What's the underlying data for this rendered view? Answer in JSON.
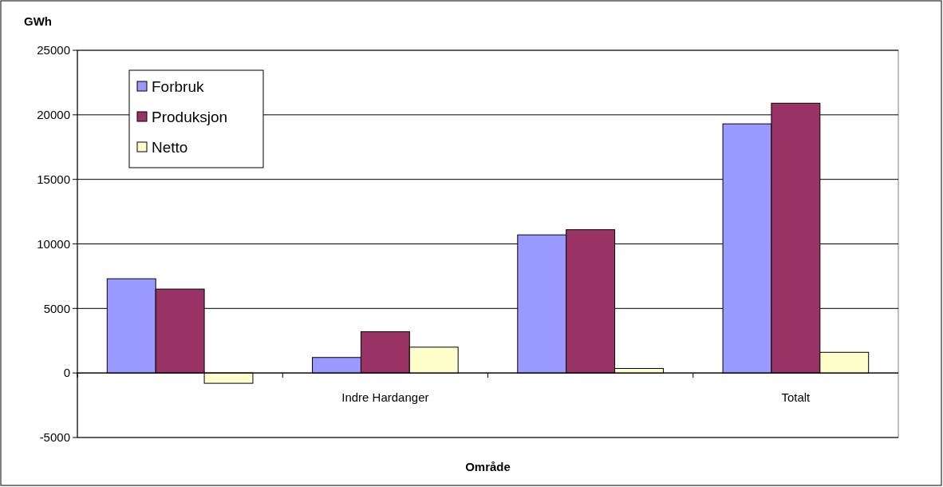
{
  "chart_data": {
    "type": "bar",
    "ylabel": "GWh",
    "xlabel": "Område",
    "categories": [
      null,
      "Indre Hardanger",
      null,
      "Totalt"
    ],
    "series": [
      {
        "name": "Forbruk",
        "color": "#9999ff",
        "values": [
          7300,
          1200,
          10700,
          19300
        ]
      },
      {
        "name": "Produksjon",
        "color": "#993366",
        "values": [
          6500,
          3200,
          11100,
          20900
        ]
      },
      {
        "name": "Netto",
        "color": "#ffffcc",
        "values": [
          -800,
          2000,
          350,
          1600
        ]
      }
    ],
    "ylim": [
      -5000,
      25000
    ],
    "yticks": [
      -5000,
      0,
      5000,
      10000,
      15000,
      20000,
      25000
    ],
    "grid": "y",
    "legend": "top left"
  }
}
